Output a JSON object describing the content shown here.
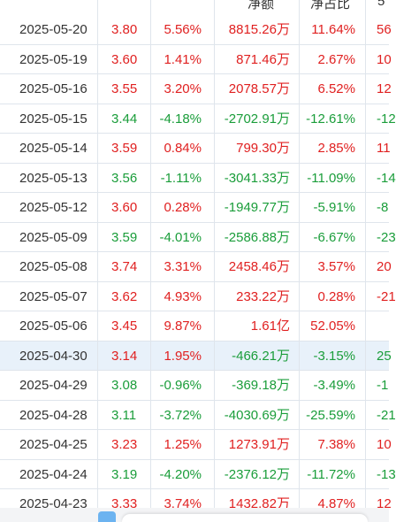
{
  "header": {
    "col_net_amount": "净额",
    "col_net_ratio": "净占比",
    "col_extra": "5"
  },
  "rows": [
    {
      "date": "2025-05-20",
      "price": "3.80",
      "pct": "5.56%",
      "amount": "8815.26万",
      "ratio": "11.64%",
      "extra": "56",
      "dir": "up",
      "ratio_dir": "up"
    },
    {
      "date": "2025-05-19",
      "price": "3.60",
      "pct": "1.41%",
      "amount": "871.46万",
      "ratio": "2.67%",
      "extra": "10",
      "dir": "up",
      "ratio_dir": "up"
    },
    {
      "date": "2025-05-16",
      "price": "3.55",
      "pct": "3.20%",
      "amount": "2078.57万",
      "ratio": "6.52%",
      "extra": "12",
      "dir": "up",
      "ratio_dir": "up"
    },
    {
      "date": "2025-05-15",
      "price": "3.44",
      "pct": "-4.18%",
      "amount": "-2702.91万",
      "ratio": "-12.61%",
      "extra": "-12",
      "dir": "down",
      "ratio_dir": "down"
    },
    {
      "date": "2025-05-14",
      "price": "3.59",
      "pct": "0.84%",
      "amount": "799.30万",
      "ratio": "2.85%",
      "extra": "11",
      "dir": "up",
      "ratio_dir": "up"
    },
    {
      "date": "2025-05-13",
      "price": "3.56",
      "pct": "-1.11%",
      "amount": "-3041.33万",
      "ratio": "-11.09%",
      "extra": "-14",
      "dir": "down",
      "ratio_dir": "down"
    },
    {
      "date": "2025-05-12",
      "price": "3.60",
      "pct": "0.28%",
      "amount": "-1949.77万",
      "ratio": "-5.91%",
      "extra": "-8",
      "dir": "up",
      "ratio_dir": "down"
    },
    {
      "date": "2025-05-09",
      "price": "3.59",
      "pct": "-4.01%",
      "amount": "-2586.88万",
      "ratio": "-6.67%",
      "extra": "-23",
      "dir": "down",
      "ratio_dir": "down"
    },
    {
      "date": "2025-05-08",
      "price": "3.74",
      "pct": "3.31%",
      "amount": "2458.46万",
      "ratio": "3.57%",
      "extra": "20",
      "dir": "up",
      "ratio_dir": "up"
    },
    {
      "date": "2025-05-07",
      "price": "3.62",
      "pct": "4.93%",
      "amount": "233.22万",
      "ratio": "0.28%",
      "extra": "-21",
      "dir": "up",
      "ratio_dir": "up"
    },
    {
      "date": "2025-05-06",
      "price": "3.45",
      "pct": "9.87%",
      "amount": "1.61亿",
      "ratio": "52.05%",
      "extra": "",
      "dir": "up",
      "ratio_dir": "up"
    },
    {
      "date": "2025-04-30",
      "price": "3.14",
      "pct": "1.95%",
      "amount": "-466.21万",
      "ratio": "-3.15%",
      "extra": "25",
      "dir": "up",
      "ratio_dir": "down",
      "highlight": true
    },
    {
      "date": "2025-04-29",
      "price": "3.08",
      "pct": "-0.96%",
      "amount": "-369.18万",
      "ratio": "-3.49%",
      "extra": "-1",
      "dir": "down",
      "ratio_dir": "down"
    },
    {
      "date": "2025-04-28",
      "price": "3.11",
      "pct": "-3.72%",
      "amount": "-4030.69万",
      "ratio": "-25.59%",
      "extra": "-21",
      "dir": "down",
      "ratio_dir": "down"
    },
    {
      "date": "2025-04-25",
      "price": "3.23",
      "pct": "1.25%",
      "amount": "1273.91万",
      "ratio": "7.38%",
      "extra": "10",
      "dir": "up",
      "ratio_dir": "up"
    },
    {
      "date": "2025-04-24",
      "price": "3.19",
      "pct": "-4.20%",
      "amount": "-2376.12万",
      "ratio": "-11.72%",
      "extra": "-13",
      "dir": "down",
      "ratio_dir": "down"
    },
    {
      "date": "2025-04-23",
      "price": "3.33",
      "pct": "3.74%",
      "amount": "1432.82万",
      "ratio": "4.87%",
      "extra": "12",
      "dir": "up",
      "ratio_dir": "up"
    }
  ],
  "colors": {
    "up": "#e02020",
    "down": "#1a9d3a",
    "border": "#dfe5ec",
    "highlight_row": "#e8f1fa"
  }
}
